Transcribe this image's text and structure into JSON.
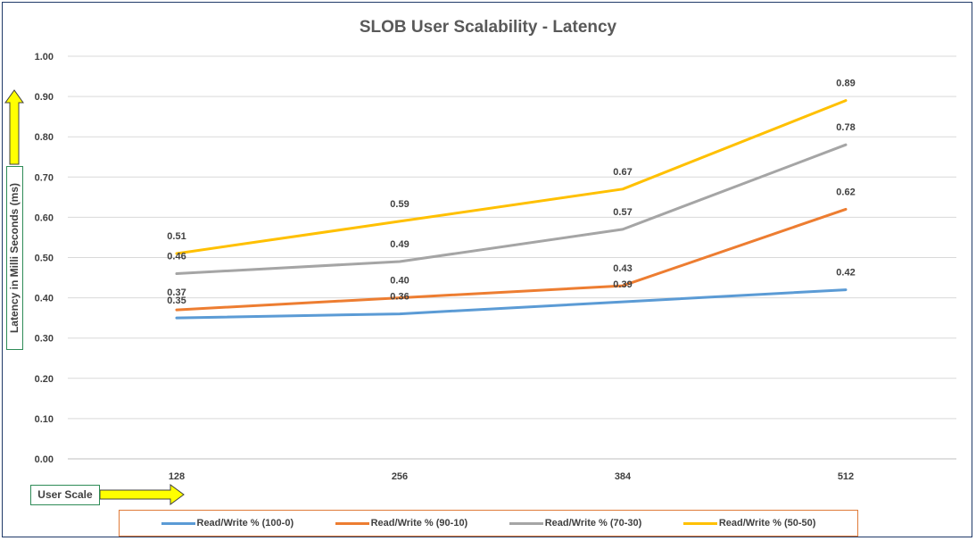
{
  "chart_data": {
    "type": "line",
    "title": "SLOB User Scalability - Latency",
    "xlabel": "User Scale",
    "ylabel": "Latency in Milli Seconds (ms)",
    "categories": [
      "128",
      "256",
      "384",
      "512"
    ],
    "ylim": [
      0,
      1
    ],
    "yticks": [
      "0.00",
      "0.10",
      "0.20",
      "0.30",
      "0.40",
      "0.50",
      "0.60",
      "0.70",
      "0.80",
      "0.90",
      "1.00"
    ],
    "grid": true,
    "legend_position": "bottom",
    "series": [
      {
        "name": "Read/Write % (100-0)",
        "color": "#5b9bd5",
        "values": [
          0.35,
          0.36,
          0.39,
          0.42
        ]
      },
      {
        "name": "Read/Write % (90-10)",
        "color": "#ed7d31",
        "values": [
          0.37,
          0.4,
          0.43,
          0.62
        ]
      },
      {
        "name": "Read/Write % (70-30)",
        "color": "#a5a5a5",
        "values": [
          0.46,
          0.49,
          0.57,
          0.78
        ]
      },
      {
        "name": "Read/Write % (50-50)",
        "color": "#ffc000",
        "values": [
          0.51,
          0.59,
          0.67,
          0.89
        ]
      }
    ]
  },
  "arrow_color": "#ffff00"
}
